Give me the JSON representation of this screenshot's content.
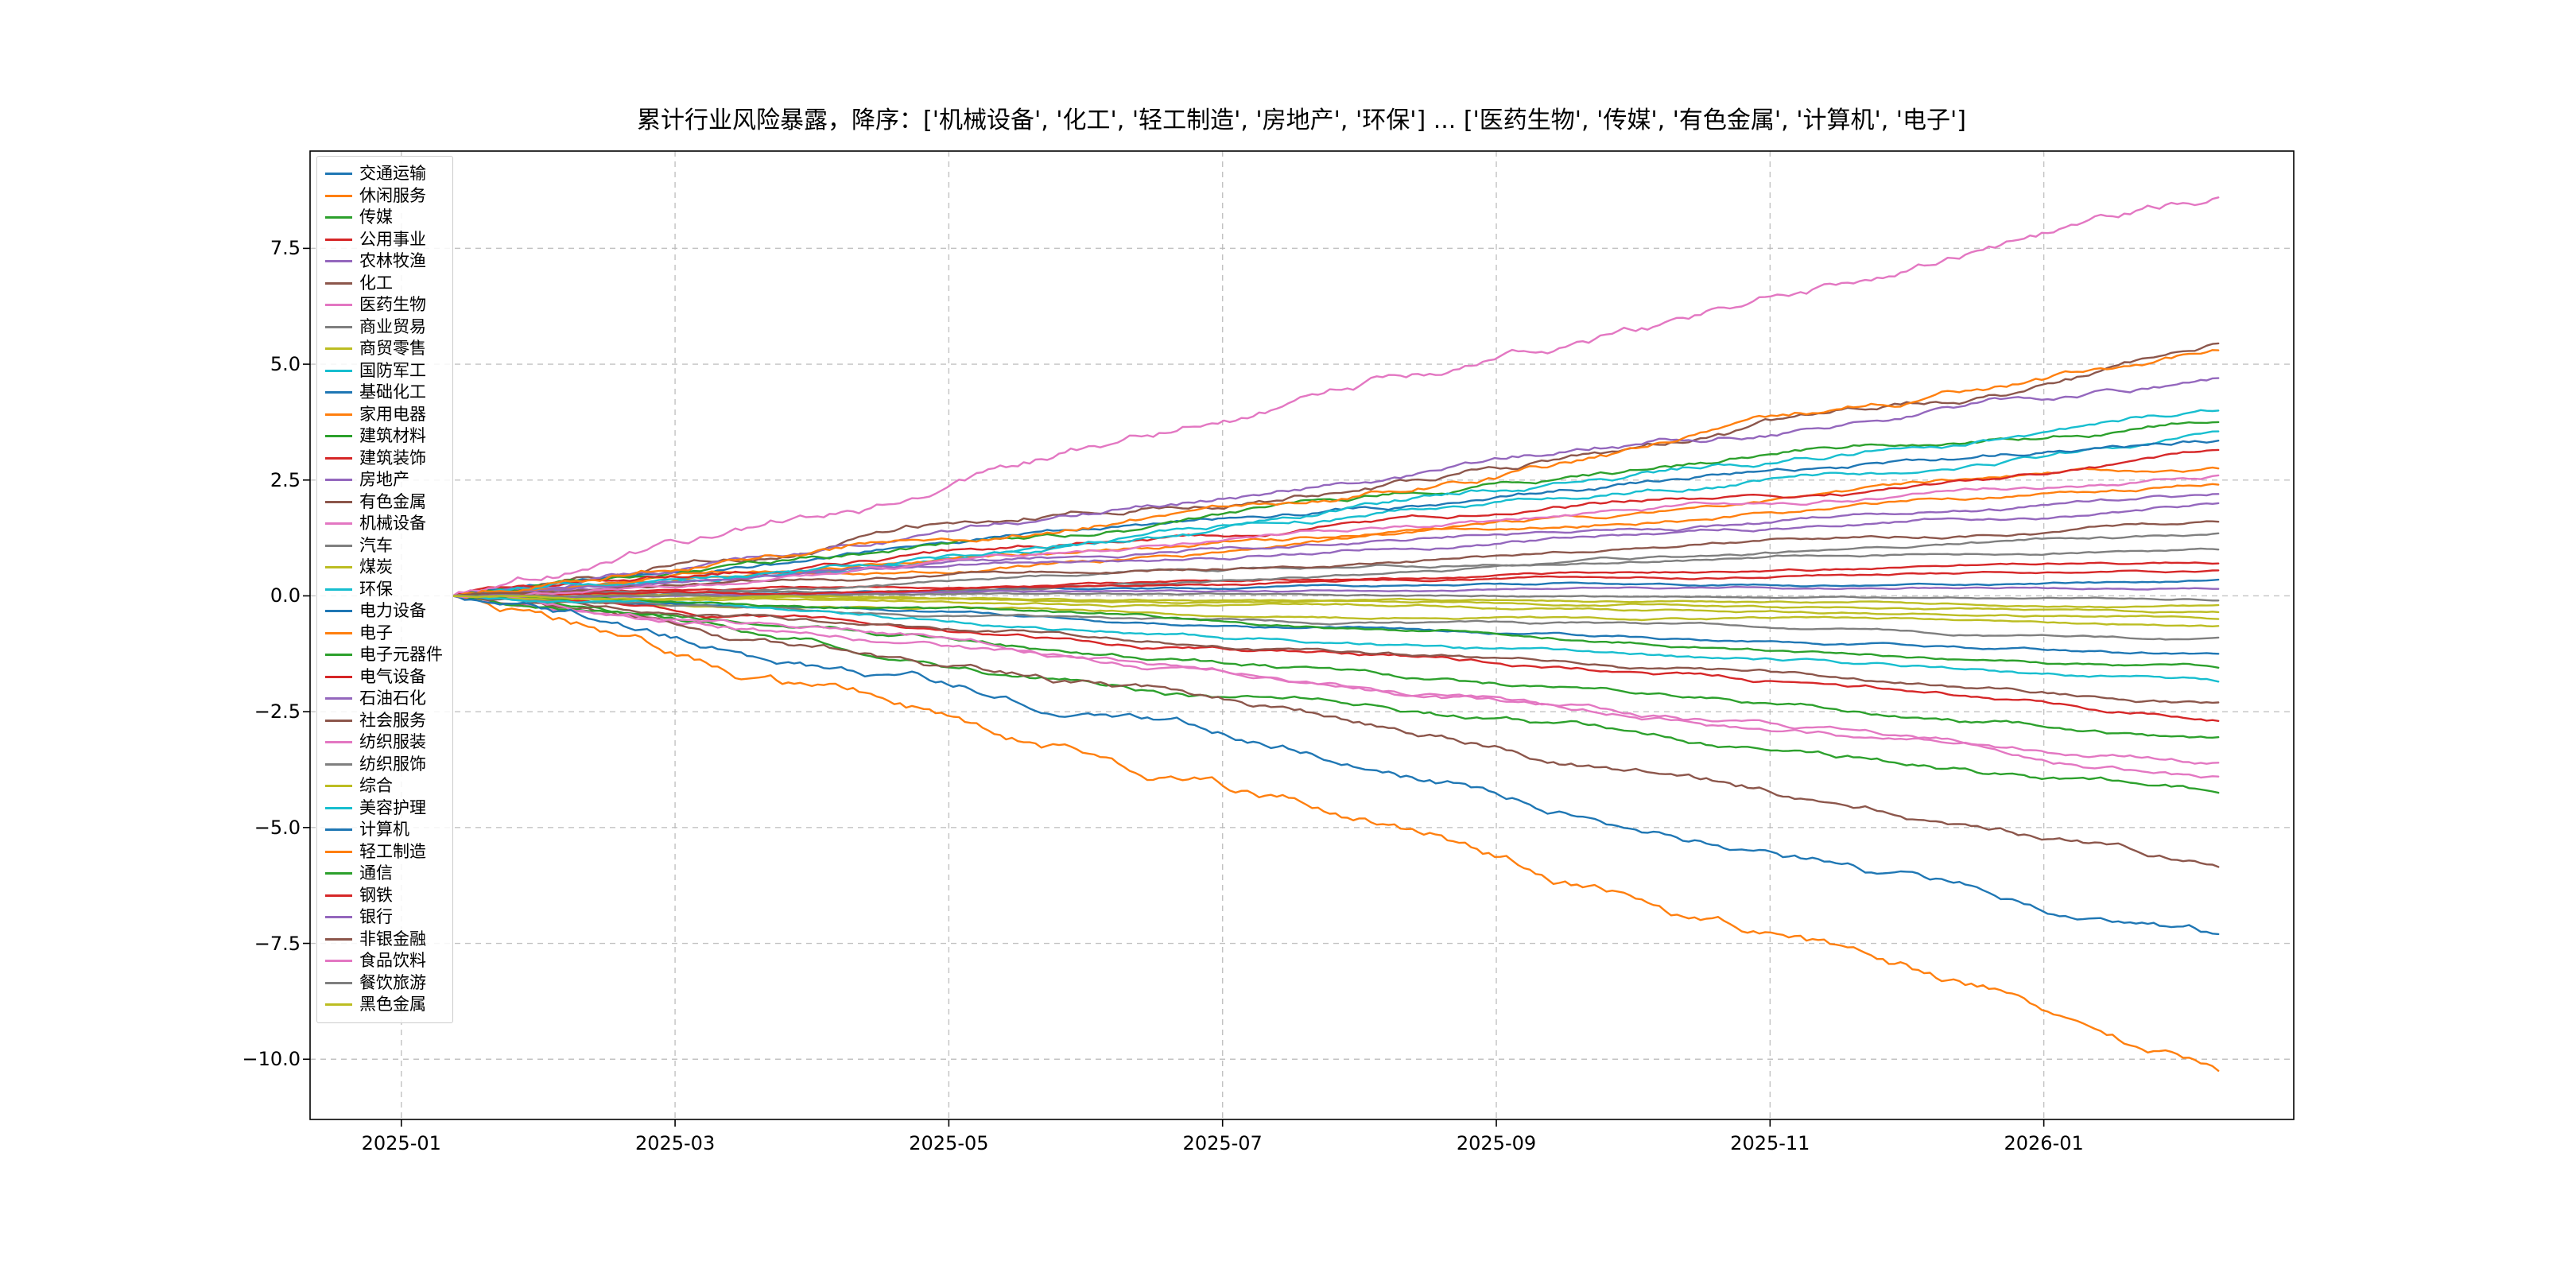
{
  "figure": {
    "background": "#ffffff",
    "grid_color": "#b8b8b8",
    "axis_color": "#000000"
  },
  "chart_data": {
    "type": "line",
    "title": "累计行业风险暴露，降序：['机械设备', '化工', '轻工制造', '房地产', '环保'] ... ['医药生物', '传媒', '有色金属', '计算机', '电子']",
    "xlabel": "",
    "ylabel": "",
    "grid": "dashed",
    "legend_position": "upper-left",
    "x_ticks": [
      "2025-01",
      "2025-03",
      "2025-05",
      "2025-07",
      "2025-09",
      "2025-11",
      "2026-01"
    ],
    "y_ticks": [
      {
        "label": "−10.0",
        "value": -10.0
      },
      {
        "label": "−7.5",
        "value": -7.5
      },
      {
        "label": "−5.0",
        "value": -5.0
      },
      {
        "label": "−2.5",
        "value": -2.5
      },
      {
        "label": "0.0",
        "value": 0.0
      },
      {
        "label": "2.5",
        "value": 2.5
      },
      {
        "label": "5.0",
        "value": 5.0
      },
      {
        "label": "7.5",
        "value": 7.5
      }
    ],
    "ylim": [
      -11.3,
      9.6
    ],
    "x_start": "2025-01",
    "x_end": "2026-02",
    "series_start_value": 0,
    "series": [
      {
        "name": "交通运输",
        "color": "#1f77b4",
        "start": 0,
        "end": 0.35
      },
      {
        "name": "休闲服务",
        "color": "#ff7f0e",
        "start": 0,
        "end": 2.4
      },
      {
        "name": "传媒",
        "color": "#2ca02c",
        "start": 0,
        "end": -4.25
      },
      {
        "name": "公用事业",
        "color": "#d62728",
        "start": 0,
        "end": 0.7
      },
      {
        "name": "农林牧渔",
        "color": "#9467bd",
        "start": 0,
        "end": 2.0
      },
      {
        "name": "化工",
        "color": "#8c564b",
        "start": 0,
        "end": 5.45
      },
      {
        "name": "医药生物",
        "color": "#e377c2",
        "start": 0,
        "end": -3.9
      },
      {
        "name": "商业贸易",
        "color": "#7f7f7f",
        "start": 0,
        "end": 1.0
      },
      {
        "name": "商贸零售",
        "color": "#bcbd22",
        "start": 0,
        "end": -0.35
      },
      {
        "name": "国防军工",
        "color": "#17becf",
        "start": 0,
        "end": 3.55
      },
      {
        "name": "基础化工",
        "color": "#1f77b4",
        "start": 0,
        "end": 3.35
      },
      {
        "name": "家用电器",
        "color": "#ff7f0e",
        "start": 0,
        "end": 2.75
      },
      {
        "name": "建筑材料",
        "color": "#2ca02c",
        "start": 0,
        "end": 3.75
      },
      {
        "name": "建筑装饰",
        "color": "#d62728",
        "start": 0,
        "end": 3.15
      },
      {
        "name": "房地产",
        "color": "#9467bd",
        "start": 0,
        "end": 4.7
      },
      {
        "name": "有色金属",
        "color": "#8c564b",
        "start": 0,
        "end": -5.85
      },
      {
        "name": "机械设备",
        "color": "#e377c2",
        "start": 0,
        "end": 8.6
      },
      {
        "name": "汽车",
        "color": "#7f7f7f",
        "start": 0,
        "end": 1.35
      },
      {
        "name": "煤炭",
        "color": "#bcbd22",
        "start": 0,
        "end": -0.65
      },
      {
        "name": "环保",
        "color": "#17becf",
        "start": 0,
        "end": 4.0
      },
      {
        "name": "电力设备",
        "color": "#1f77b4",
        "start": 0,
        "end": -1.25
      },
      {
        "name": "电子",
        "color": "#ff7f0e",
        "start": 0,
        "end": -10.25
      },
      {
        "name": "电子元器件",
        "color": "#2ca02c",
        "start": 0,
        "end": -3.05
      },
      {
        "name": "电气设备",
        "color": "#d62728",
        "start": 0,
        "end": -2.7
      },
      {
        "name": "石油石化",
        "color": "#9467bd",
        "start": 0,
        "end": 0.15
      },
      {
        "name": "社会服务",
        "color": "#8c564b",
        "start": 0,
        "end": -2.3
      },
      {
        "name": "纺织服装",
        "color": "#e377c2",
        "start": 0,
        "end": -3.6
      },
      {
        "name": "纺织服饰",
        "color": "#7f7f7f",
        "start": 0,
        "end": -0.9
      },
      {
        "name": "综合",
        "color": "#bcbd22",
        "start": 0,
        "end": -0.5
      },
      {
        "name": "美容护理",
        "color": "#17becf",
        "start": 0,
        "end": -1.85
      },
      {
        "name": "计算机",
        "color": "#1f77b4",
        "start": 0,
        "end": -7.3
      },
      {
        "name": "轻工制造",
        "color": "#ff7f0e",
        "start": 0,
        "end": 5.3
      },
      {
        "name": "通信",
        "color": "#2ca02c",
        "start": 0,
        "end": -1.55
      },
      {
        "name": "钢铁",
        "color": "#d62728",
        "start": 0,
        "end": 0.55
      },
      {
        "name": "银行",
        "color": "#9467bd",
        "start": 0,
        "end": 2.2
      },
      {
        "name": "非银金融",
        "color": "#8c564b",
        "start": 0,
        "end": 1.6
      },
      {
        "name": "食品饮料",
        "color": "#e377c2",
        "start": 0,
        "end": 2.6
      },
      {
        "name": "餐饮旅游",
        "color": "#7f7f7f",
        "start": 0,
        "end": -0.1
      },
      {
        "name": "黑色金属",
        "color": "#bcbd22",
        "start": 0,
        "end": -0.2
      }
    ],
    "sort_order_top5": [
      "机械设备",
      "化工",
      "轻工制造",
      "房地产",
      "环保"
    ],
    "sort_order_bottom5": [
      "医药生物",
      "传媒",
      "有色金属",
      "计算机",
      "电子"
    ]
  }
}
